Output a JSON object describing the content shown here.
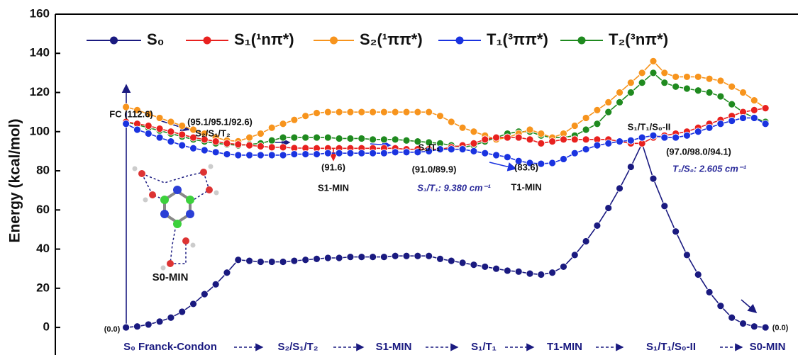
{
  "chart_data": {
    "type": "line",
    "y_label": "Energy (kcal/mol)",
    "ylim": [
      -13,
      160
    ],
    "yticks": [
      0,
      20,
      40,
      60,
      80,
      100,
      120,
      140,
      160
    ],
    "xlim": [
      -6.3,
      59.9
    ],
    "x": [
      0,
      1,
      2,
      3,
      4,
      5,
      6,
      7,
      8,
      9,
      10,
      11,
      12,
      13,
      14,
      15,
      16,
      17,
      18,
      19,
      20,
      21,
      22,
      23,
      24,
      25,
      26,
      27,
      28,
      29,
      30,
      31,
      32,
      33,
      34,
      35,
      36,
      37,
      38,
      39,
      40,
      41,
      42,
      43,
      44,
      45,
      46,
      47,
      48,
      49,
      50,
      51,
      52,
      53,
      54,
      55,
      56,
      57
    ],
    "series": [
      {
        "name": "S₀",
        "color": "#1a1a80",
        "values": [
          0,
          0.5,
          1.5,
          3,
          5,
          8,
          12,
          17,
          22,
          28,
          34.5,
          34,
          33.5,
          33.5,
          33.5,
          34,
          34.5,
          35,
          35.5,
          35.5,
          36,
          36,
          36,
          36,
          36.5,
          36.5,
          36.5,
          36.5,
          35,
          34,
          33,
          32,
          31,
          30,
          29,
          28.5,
          27.5,
          27,
          28,
          31,
          37,
          44,
          52,
          61,
          71,
          82,
          94,
          76,
          62,
          49,
          37,
          27,
          18,
          11,
          5,
          2,
          0.5,
          0
        ]
      },
      {
        "name": "S₁(¹nπ*)",
        "color": "#e8211f",
        "values": [
          105,
          104,
          103,
          101.5,
          100,
          98.5,
          97,
          96,
          95,
          94,
          93.5,
          93,
          92.5,
          92,
          92,
          91.6,
          91.6,
          91.5,
          91.5,
          91.5,
          91.5,
          91.5,
          91.5,
          91.5,
          91.5,
          91,
          91,
          91,
          91,
          92,
          93,
          94,
          96,
          97,
          97,
          97,
          96,
          94,
          95,
          96,
          96,
          96,
          96,
          96,
          95,
          94,
          94,
          97,
          98,
          99,
          100,
          102,
          104,
          106,
          108,
          110,
          111,
          112
        ]
      },
      {
        "name": "S₂(¹ππ*)",
        "color": "#f7941d",
        "values": [
          112.6,
          111,
          109,
          107,
          105,
          103,
          101,
          99,
          97,
          95.5,
          95.1,
          97,
          99,
          102,
          104,
          106,
          108,
          109.5,
          110,
          110,
          110,
          110,
          110,
          110,
          110,
          110,
          110,
          110,
          108,
          105,
          102,
          100,
          98,
          96,
          97,
          99,
          101,
          99,
          97,
          99,
          103,
          107,
          111,
          115,
          120,
          125,
          130,
          136,
          130,
          128,
          128,
          128,
          127,
          126,
          123,
          120,
          116,
          112
        ]
      },
      {
        "name": "T₁(³ππ*)",
        "color": "#1a33e0",
        "values": [
          104,
          101,
          99,
          97,
          95,
          93,
          91.5,
          90.5,
          89.5,
          88.5,
          88,
          88,
          88,
          88,
          88,
          88.5,
          88.5,
          88.5,
          89,
          89,
          89,
          89,
          89,
          89,
          89.5,
          89.5,
          89.5,
          90,
          91,
          91,
          91,
          90,
          89,
          88,
          87,
          85,
          84,
          83.6,
          84,
          86,
          89,
          91,
          93,
          94,
          95,
          95.5,
          97,
          98,
          97,
          97,
          98,
          100,
          102,
          104,
          105.5,
          107,
          107,
          104
        ]
      },
      {
        "name": "T₂(³nπ*)",
        "color": "#1f8a1f",
        "values": [
          105,
          103.5,
          102,
          100.5,
          99,
          97.5,
          96,
          95,
          94,
          93.5,
          93,
          93.5,
          94,
          95.5,
          97,
          97,
          97,
          97,
          97,
          96.5,
          96.5,
          96.5,
          96,
          96,
          96,
          95.5,
          95,
          94.5,
          94,
          93,
          92,
          93,
          95,
          97,
          99,
          100,
          100,
          98,
          97,
          97,
          98,
          101,
          104,
          110,
          115,
          120,
          125,
          130,
          125,
          123,
          122,
          121,
          120,
          118,
          114,
          110,
          107,
          105
        ]
      }
    ],
    "annotations": [
      "FC (112.6)",
      "(95.1/95.1/92.6)",
      "S₂/S₁/T₂",
      "(91.6)",
      "S1-MIN",
      "S₁/T₁",
      "(91.0/89.9)",
      "S₁/T₁: 9.380 cm⁻¹",
      "(83.6)",
      "T1-MIN",
      "S₁/T₁/S₀-II",
      "(97.0/98.0/94.1)",
      "T₁/S₀: 2.605 cm⁻¹",
      "(0.0)",
      "(0.0)",
      "S0-MIN"
    ],
    "path_labels": [
      "S₀ Franck-Condon",
      "S₂/S₁/T₂",
      "S1-MIN",
      "S₁/T₁",
      "T1-MIN",
      "S₁/T₁/S₀-II",
      "S0-MIN"
    ]
  }
}
